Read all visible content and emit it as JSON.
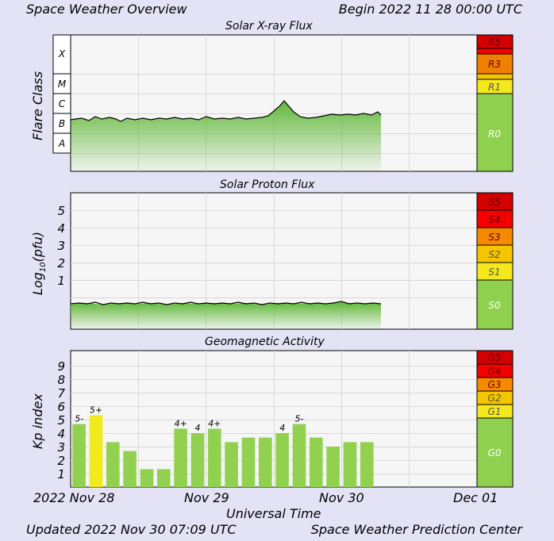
{
  "header": {
    "title": "Space Weather Overview",
    "begin": "Begin 2022 11 28 00:00 UTC"
  },
  "footer": {
    "updated": "Updated 2022 Nov 30 07:09 UTC",
    "credit": "Space Weather Prediction Center"
  },
  "colors": {
    "background": "#e3e3f5",
    "fill_green": "#6cc040",
    "bar_green": "#92d050",
    "bar_yellow": "#f0ea1e",
    "scale_r5": "#d40000",
    "scale_r3": "#f08000",
    "scale_r1": "#f5e81e",
    "scale_r0": "#8fd14f",
    "scale_s5": "#d40000",
    "scale_s4": "#f40000",
    "scale_s3": "#f58a00",
    "scale_s2": "#f5c500",
    "scale_s1": "#f5e81e"
  },
  "chart_data": [
    {
      "type": "area",
      "title": "Solar X-ray Flux",
      "ylabel": "Flare Class",
      "y_classes": [
        "X",
        "M",
        "C",
        "B",
        "A"
      ],
      "scale_labels": [
        "R5",
        "R3",
        "R1",
        "R0"
      ],
      "x_start": "2022 Nov 28 00:00",
      "x_data_end": "2022 Nov 30 07:00",
      "baseline_class": "B",
      "peak": {
        "time": "2022 Nov 29 10:00",
        "class": "C2"
      }
    },
    {
      "type": "area",
      "title": "Solar Proton Flux",
      "ylabel": "Log10(pfu)",
      "yticks": [
        "5",
        "4",
        "3",
        "2",
        "1"
      ],
      "scale_labels": [
        "S5",
        "S4",
        "S3",
        "S2",
        "S1",
        "S0"
      ],
      "x_start": "2022 Nov 28 00:00",
      "x_data_end": "2022 Nov 30 07:00",
      "level": "below 1"
    },
    {
      "type": "bar",
      "title": "Geomagnetic Activity",
      "ylabel": "Kp index",
      "xlabel": "Universal Time",
      "xticks": [
        "2022 Nov 28",
        "Nov 29",
        "Nov 30",
        "Dec 01"
      ],
      "yticks": [
        "9",
        "8",
        "7",
        "6",
        "5",
        "4",
        "3",
        "2",
        "1"
      ],
      "ylim": [
        0,
        9
      ],
      "scale_labels": [
        "G5",
        "G4",
        "G3",
        "G2",
        "G1",
        "G0"
      ],
      "values": [
        4.67,
        5.33,
        3.33,
        2.67,
        1.33,
        1.33,
        4.33,
        4.0,
        4.33,
        3.33,
        3.67,
        3.67,
        4.0,
        4.67,
        3.67,
        3.0,
        3.33,
        3.33
      ],
      "bar_labels": [
        "5-",
        "5+",
        "",
        "",
        "",
        "",
        "4+",
        "4",
        "4+",
        "",
        "",
        "",
        "4",
        "5-",
        "",
        "",
        "",
        ""
      ],
      "bar_colors": [
        "green",
        "yellow",
        "green",
        "green",
        "green",
        "green",
        "green",
        "green",
        "green",
        "green",
        "green",
        "green",
        "green",
        "green",
        "green",
        "green",
        "green",
        "green"
      ]
    }
  ]
}
